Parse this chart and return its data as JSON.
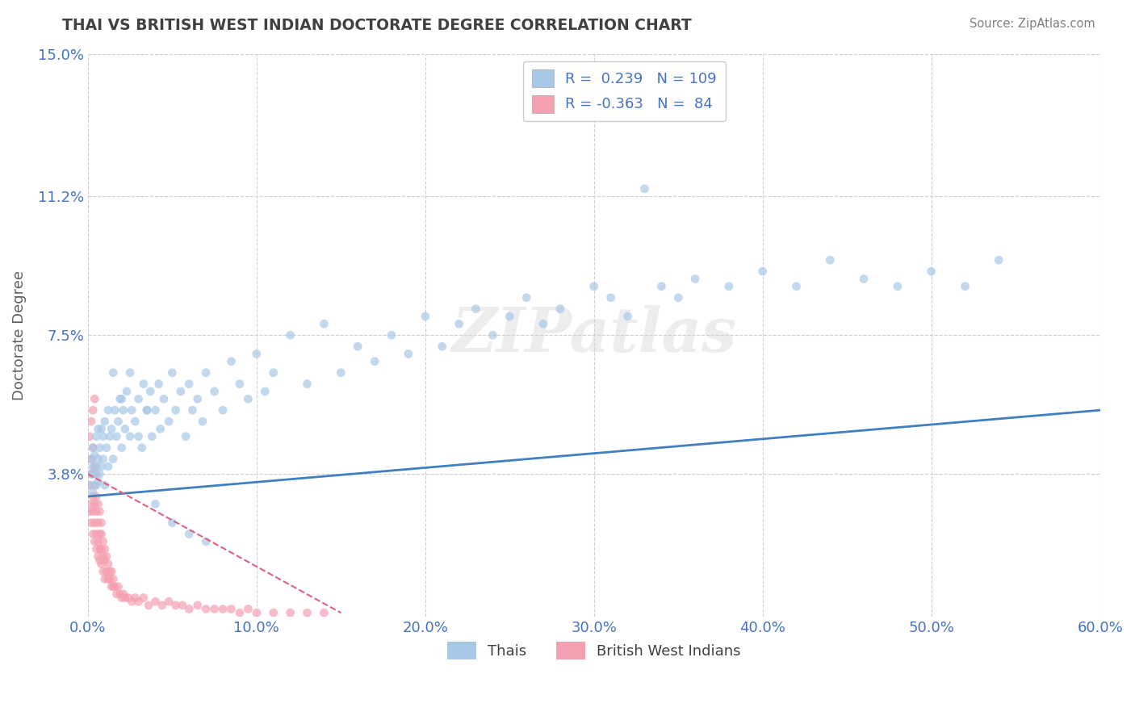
{
  "title": "THAI VS BRITISH WEST INDIAN DOCTORATE DEGREE CORRELATION CHART",
  "source": "Source: ZipAtlas.com",
  "ylabel": "Doctorate Degree",
  "xlim": [
    0.0,
    0.6
  ],
  "ylim": [
    0.0,
    0.15
  ],
  "yticks": [
    0.038,
    0.075,
    0.112,
    0.15
  ],
  "ytick_labels": [
    "3.8%",
    "7.5%",
    "11.2%",
    "15.0%"
  ],
  "xticks": [
    0.0,
    0.1,
    0.2,
    0.3,
    0.4,
    0.5,
    0.6
  ],
  "xtick_labels": [
    "0.0%",
    "10.0%",
    "20.0%",
    "30.0%",
    "40.0%",
    "50.0%",
    "60.0%"
  ],
  "blue_color": "#a8c8e8",
  "pink_color": "#f4a0b0",
  "line_blue": "#4080c0",
  "line_pink": "#e06080",
  "title_color": "#404040",
  "grid_color": "#d0d0d0",
  "tick_label_color": "#4472c4",
  "bg_color": "#ffffff",
  "scatter_alpha": 0.7,
  "scatter_size": 60,
  "thai_x": [
    0.001,
    0.002,
    0.002,
    0.003,
    0.003,
    0.003,
    0.004,
    0.004,
    0.005,
    0.005,
    0.005,
    0.006,
    0.006,
    0.006,
    0.007,
    0.007,
    0.008,
    0.008,
    0.009,
    0.009,
    0.01,
    0.01,
    0.011,
    0.012,
    0.012,
    0.013,
    0.014,
    0.015,
    0.016,
    0.017,
    0.018,
    0.019,
    0.02,
    0.021,
    0.022,
    0.023,
    0.025,
    0.026,
    0.028,
    0.03,
    0.032,
    0.033,
    0.035,
    0.037,
    0.038,
    0.04,
    0.042,
    0.043,
    0.045,
    0.048,
    0.05,
    0.052,
    0.055,
    0.058,
    0.06,
    0.062,
    0.065,
    0.068,
    0.07,
    0.075,
    0.08,
    0.085,
    0.09,
    0.095,
    0.1,
    0.105,
    0.11,
    0.12,
    0.13,
    0.14,
    0.15,
    0.16,
    0.17,
    0.18,
    0.19,
    0.2,
    0.21,
    0.22,
    0.23,
    0.24,
    0.25,
    0.26,
    0.27,
    0.28,
    0.3,
    0.31,
    0.32,
    0.33,
    0.34,
    0.35,
    0.36,
    0.38,
    0.4,
    0.42,
    0.44,
    0.46,
    0.48,
    0.5,
    0.52,
    0.54,
    0.015,
    0.02,
    0.025,
    0.03,
    0.035,
    0.04,
    0.05,
    0.06,
    0.07
  ],
  "thai_y": [
    0.035,
    0.038,
    0.042,
    0.033,
    0.04,
    0.045,
    0.038,
    0.043,
    0.035,
    0.04,
    0.048,
    0.036,
    0.042,
    0.05,
    0.038,
    0.045,
    0.04,
    0.05,
    0.042,
    0.048,
    0.035,
    0.052,
    0.045,
    0.04,
    0.055,
    0.048,
    0.05,
    0.042,
    0.055,
    0.048,
    0.052,
    0.058,
    0.045,
    0.055,
    0.05,
    0.06,
    0.048,
    0.055,
    0.052,
    0.058,
    0.045,
    0.062,
    0.055,
    0.06,
    0.048,
    0.055,
    0.062,
    0.05,
    0.058,
    0.052,
    0.065,
    0.055,
    0.06,
    0.048,
    0.062,
    0.055,
    0.058,
    0.052,
    0.065,
    0.06,
    0.055,
    0.068,
    0.062,
    0.058,
    0.07,
    0.06,
    0.065,
    0.075,
    0.062,
    0.078,
    0.065,
    0.072,
    0.068,
    0.075,
    0.07,
    0.08,
    0.072,
    0.078,
    0.082,
    0.075,
    0.08,
    0.085,
    0.078,
    0.082,
    0.088,
    0.085,
    0.08,
    0.114,
    0.088,
    0.085,
    0.09,
    0.088,
    0.092,
    0.088,
    0.095,
    0.09,
    0.088,
    0.092,
    0.088,
    0.095,
    0.065,
    0.058,
    0.065,
    0.048,
    0.055,
    0.03,
    0.025,
    0.022,
    0.02
  ],
  "bwi_x": [
    0.001,
    0.001,
    0.002,
    0.002,
    0.002,
    0.002,
    0.003,
    0.003,
    0.003,
    0.003,
    0.003,
    0.004,
    0.004,
    0.004,
    0.004,
    0.004,
    0.005,
    0.005,
    0.005,
    0.005,
    0.005,
    0.006,
    0.006,
    0.006,
    0.006,
    0.007,
    0.007,
    0.007,
    0.007,
    0.008,
    0.008,
    0.008,
    0.008,
    0.009,
    0.009,
    0.009,
    0.01,
    0.01,
    0.01,
    0.011,
    0.011,
    0.012,
    0.012,
    0.013,
    0.013,
    0.014,
    0.014,
    0.015,
    0.015,
    0.016,
    0.017,
    0.018,
    0.019,
    0.02,
    0.021,
    0.022,
    0.024,
    0.026,
    0.028,
    0.03,
    0.033,
    0.036,
    0.04,
    0.044,
    0.048,
    0.052,
    0.056,
    0.06,
    0.065,
    0.07,
    0.075,
    0.08,
    0.085,
    0.09,
    0.095,
    0.1,
    0.11,
    0.12,
    0.13,
    0.14,
    0.001,
    0.002,
    0.003,
    0.004
  ],
  "bwi_y": [
    0.028,
    0.035,
    0.025,
    0.03,
    0.038,
    0.042,
    0.022,
    0.028,
    0.032,
    0.038,
    0.045,
    0.02,
    0.025,
    0.03,
    0.035,
    0.04,
    0.018,
    0.022,
    0.028,
    0.032,
    0.038,
    0.016,
    0.02,
    0.025,
    0.03,
    0.015,
    0.018,
    0.022,
    0.028,
    0.014,
    0.018,
    0.022,
    0.025,
    0.012,
    0.016,
    0.02,
    0.01,
    0.015,
    0.018,
    0.012,
    0.016,
    0.01,
    0.014,
    0.01,
    0.012,
    0.008,
    0.012,
    0.008,
    0.01,
    0.008,
    0.006,
    0.008,
    0.006,
    0.005,
    0.006,
    0.005,
    0.005,
    0.004,
    0.005,
    0.004,
    0.005,
    0.003,
    0.004,
    0.003,
    0.004,
    0.003,
    0.003,
    0.002,
    0.003,
    0.002,
    0.002,
    0.002,
    0.002,
    0.001,
    0.002,
    0.001,
    0.001,
    0.001,
    0.001,
    0.001,
    0.048,
    0.052,
    0.055,
    0.058
  ],
  "thai_trend_x": [
    0.0,
    0.6
  ],
  "thai_trend_y": [
    0.032,
    0.055
  ],
  "bwi_trend_x": [
    0.0,
    0.15
  ],
  "bwi_trend_y": [
    0.038,
    0.001
  ],
  "watermark_text": "ZIPatlas",
  "legend_r_blue": "R =  0.239",
  "legend_n_blue": "N = 109",
  "legend_r_pink": "R = -0.363",
  "legend_n_pink": "N =  84",
  "legend_label_blue": "Thais",
  "legend_label_pink": "British West Indians"
}
